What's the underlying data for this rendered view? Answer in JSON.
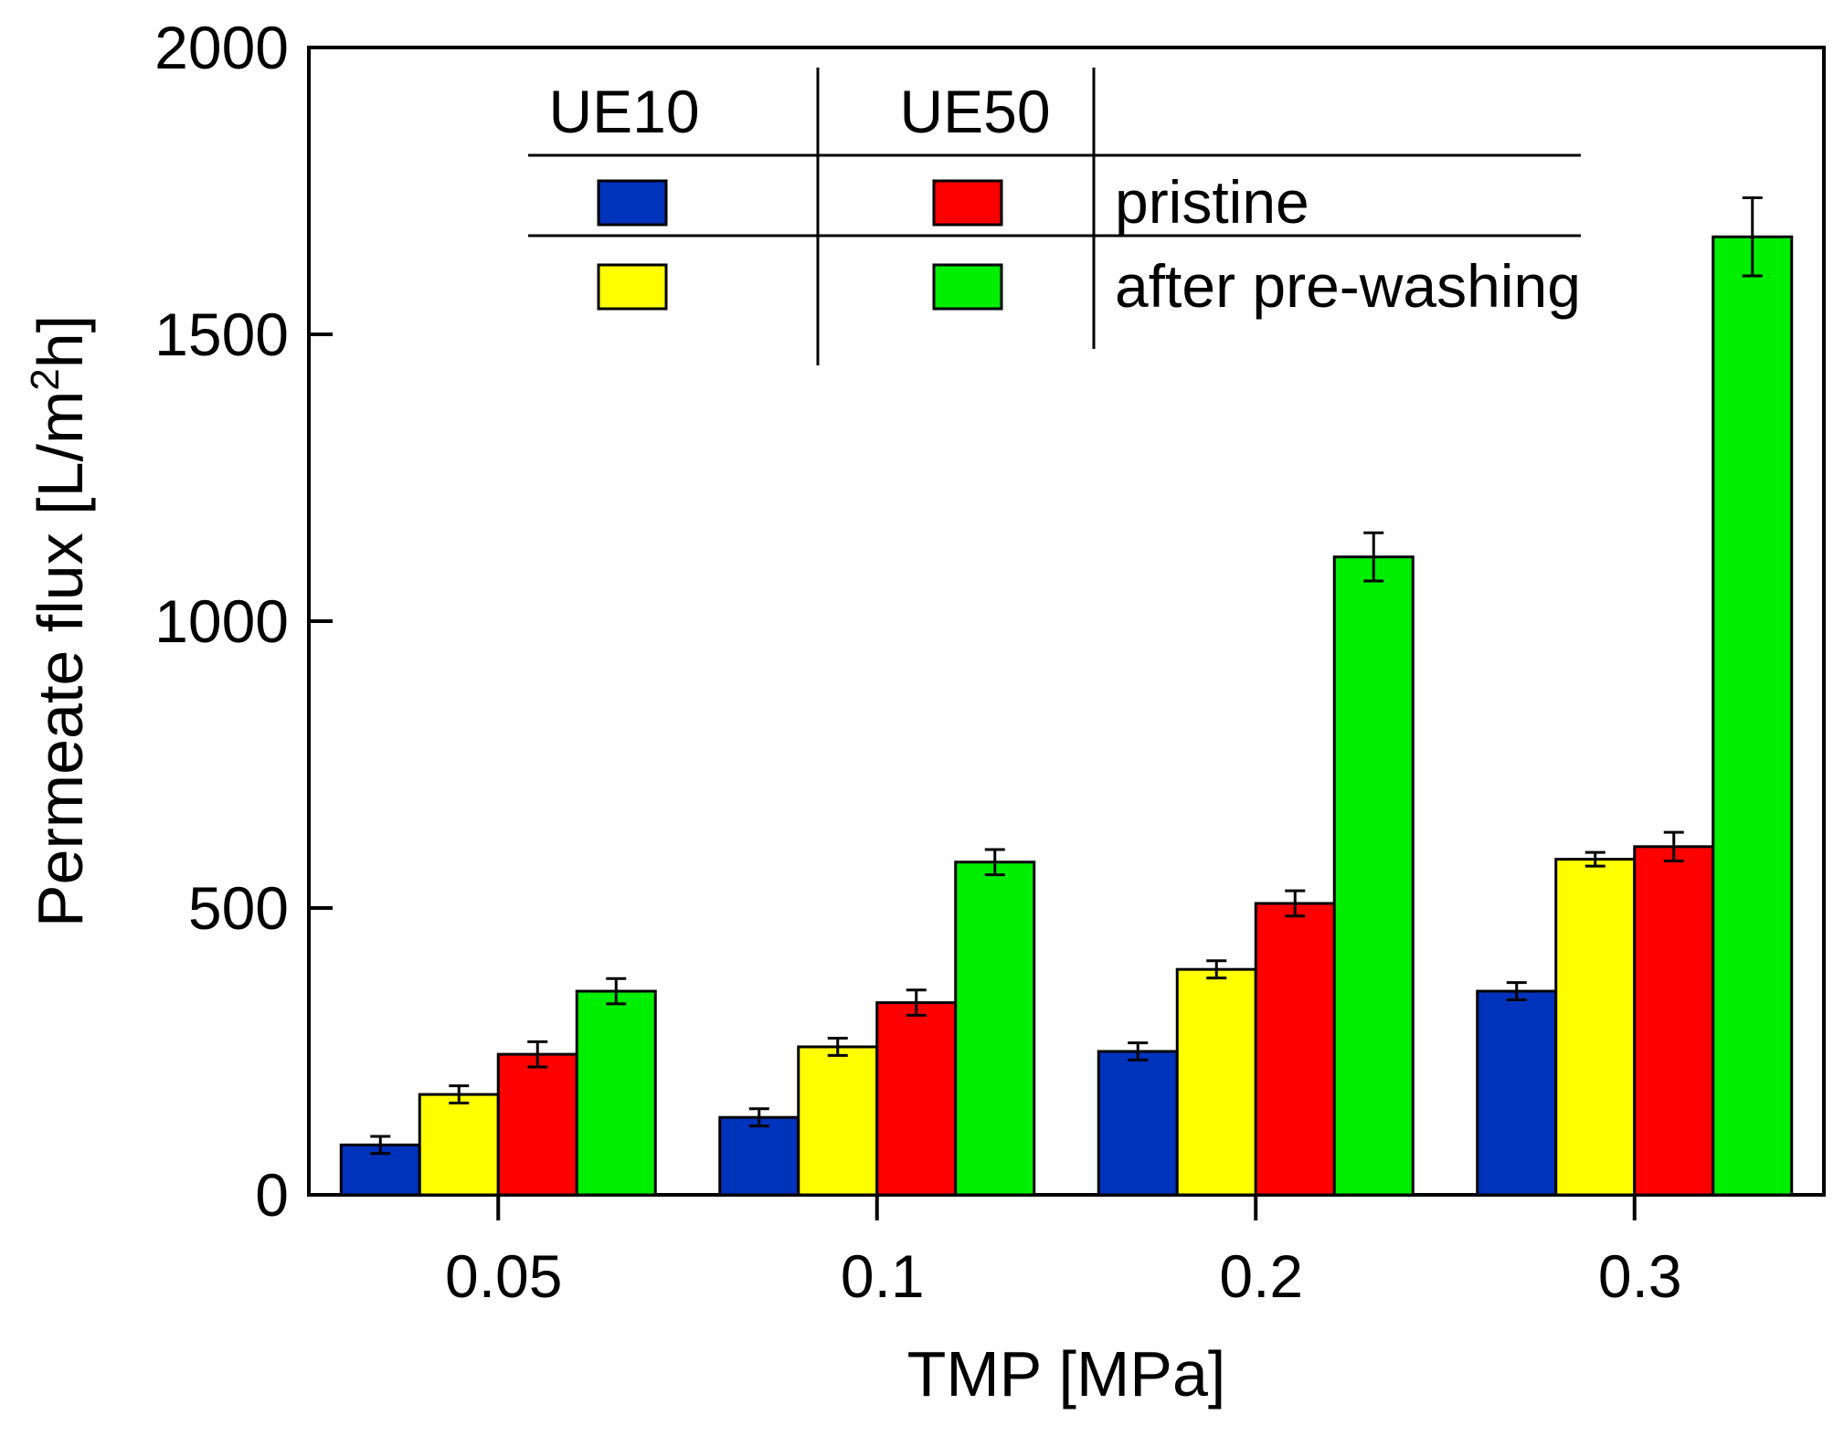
{
  "chart_data": {
    "type": "bar",
    "title": "",
    "xlabel": "TMP [MPa]",
    "ylabel": {
      "main": "Permeate flux [L/m",
      "sup": "2",
      "end": "h]"
    },
    "ylim": [
      0,
      2000
    ],
    "yticks": [
      "0",
      "500",
      "1000",
      "1500",
      "2000"
    ],
    "categories": [
      "0.05",
      "0.1",
      "0.2",
      "0.3"
    ],
    "series": [
      {
        "name": "UE10 pristine",
        "color": "#0033bb",
        "values": [
          87,
          135,
          250,
          355
        ],
        "errors": [
          15,
          15,
          15,
          15
        ]
      },
      {
        "name": "UE10 after pre-washing",
        "color": "#ffff00",
        "values": [
          175,
          258,
          393,
          585
        ],
        "errors": [
          15,
          15,
          15,
          12
        ]
      },
      {
        "name": "UE50 pristine",
        "color": "#ff0000",
        "values": [
          245,
          335,
          508,
          607
        ],
        "errors": [
          22,
          22,
          22,
          25
        ]
      },
      {
        "name": "UE50 after pre-washing",
        "color": "#00ee00",
        "values": [
          355,
          580,
          1112,
          1670
        ],
        "errors": [
          22,
          22,
          42,
          68
        ]
      }
    ],
    "legend": {
      "position": "top",
      "col_headers": [
        "UE10",
        "UE50"
      ],
      "row_labels": [
        "pristine",
        "after pre-washing"
      ]
    }
  }
}
